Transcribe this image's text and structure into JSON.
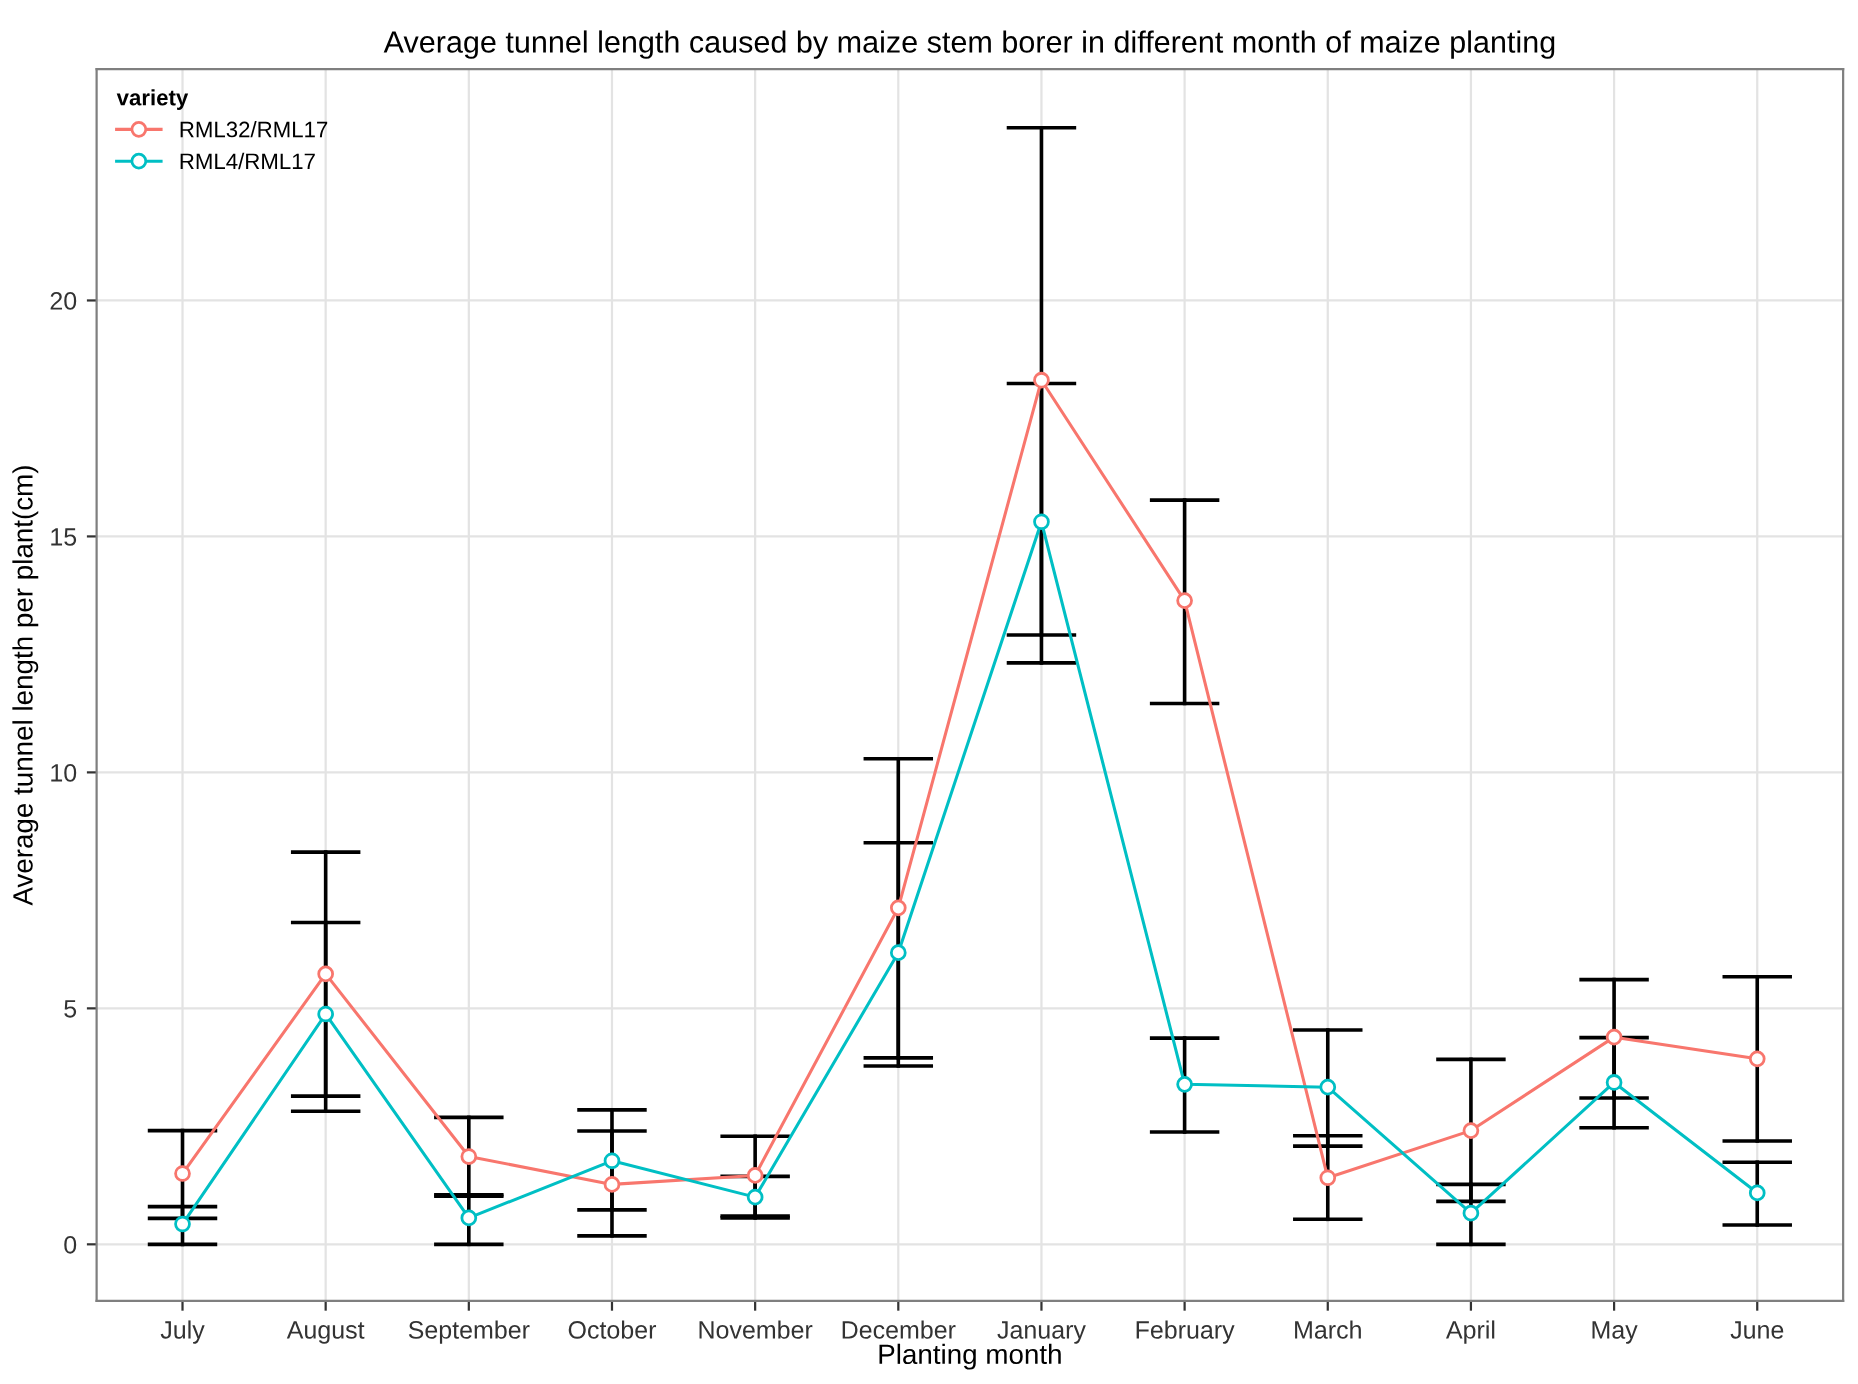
{
  "chart_data": {
    "type": "line",
    "title": "Average tunnel length caused by maize stem borer in different month of maize planting",
    "xlabel": "Planting month",
    "ylabel": "Average tunnel length per plant(cm)",
    "legend_title": "variety",
    "categories": [
      "July",
      "August",
      "September",
      "October",
      "November",
      "December",
      "January",
      "February",
      "March",
      "April",
      "May",
      "June"
    ],
    "series": [
      {
        "name": "RML32/RML17",
        "color": "#f8766d",
        "values": [
          1.5,
          5.73,
          1.86,
          1.27,
          1.46,
          7.13,
          18.31,
          13.64,
          1.41,
          2.41,
          4.39,
          3.93
        ],
        "errors": [
          [
            0.55,
            2.41
          ],
          [
            3.14,
            8.31
          ],
          [
            1.02,
            2.69
          ],
          [
            0.18,
            2.4
          ],
          [
            0.6,
            2.29
          ],
          [
            3.95,
            10.29
          ],
          [
            12.91,
            23.66
          ],
          [
            11.46,
            15.77
          ],
          [
            0.53,
            2.3
          ],
          [
            0.91,
            3.92
          ],
          [
            3.1,
            5.61
          ],
          [
            2.19,
            5.67
          ]
        ]
      },
      {
        "name": "RML4/RML17",
        "color": "#00bfc4",
        "values": [
          0.43,
          4.88,
          0.56,
          1.77,
          1.0,
          6.18,
          15.31,
          3.39,
          3.33,
          0.66,
          3.43,
          1.09
        ],
        "errors": [
          [
            0,
            0.8
          ],
          [
            2.82,
            6.82
          ],
          [
            0,
            1.05
          ],
          [
            0.73,
            2.85
          ],
          [
            0.56,
            1.44
          ],
          [
            3.78,
            8.51
          ],
          [
            12.32,
            18.24
          ],
          [
            2.38,
            4.37
          ],
          [
            2.08,
            4.54
          ],
          [
            0,
            1.27
          ],
          [
            2.47,
            4.38
          ],
          [
            0.41,
            1.74
          ]
        ]
      }
    ],
    "ylim": [
      -1.2,
      24.9
    ],
    "yticks": [
      0,
      5,
      10,
      15,
      20
    ],
    "grid": true,
    "legend": "top left",
    "marker": "circle",
    "line_style": "solid"
  }
}
